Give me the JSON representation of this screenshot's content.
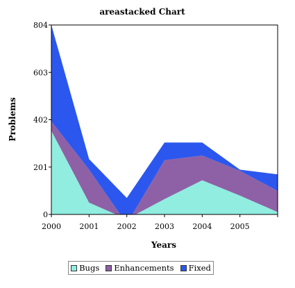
{
  "chart_data": {
    "type": "area",
    "stacked": true,
    "title": "areastacked Chart",
    "xlabel": "Years",
    "ylabel": "Problems",
    "x_ticks": [
      "2000",
      "2001",
      "2002",
      "2003",
      "2004",
      "2005"
    ],
    "y_ticks": [
      "0",
      "201",
      "402",
      "603",
      "804"
    ],
    "ylim": [
      0,
      804
    ],
    "x": [
      2000,
      2001,
      2002,
      2003,
      2004,
      2005,
      2006
    ],
    "series": [
      {
        "name": "Bugs",
        "color": "#90ede0",
        "values": [
          355,
          50,
          -20,
          65,
          145,
          80,
          10
        ]
      },
      {
        "name": "Enhancements",
        "color": "#8e61a6",
        "values": [
          40,
          140,
          -20,
          165,
          105,
          105,
          90
        ]
      },
      {
        "name": "Fixed",
        "color": "#2b57ee",
        "values": [
          409,
          45,
          110,
          75,
          55,
          5,
          70
        ]
      }
    ],
    "grid": false,
    "legend_position": "bottom"
  }
}
